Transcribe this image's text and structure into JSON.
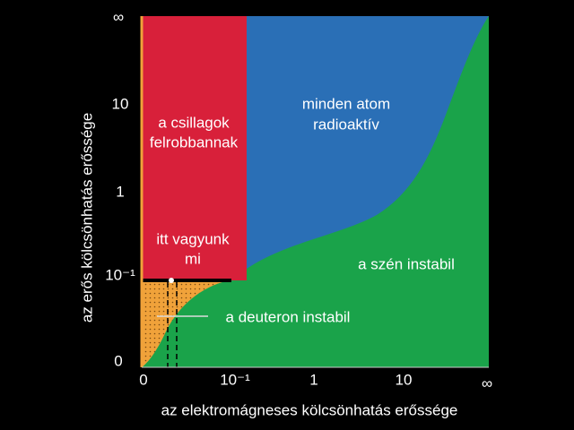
{
  "axes": {
    "x_label": "az elektromágneses kölcsönhatás erőssége",
    "y_label": "az erős kölcsönhatás erőssége",
    "x_ticks": [
      "0",
      "10⁻¹",
      "1",
      "10",
      "∞"
    ],
    "y_ticks": [
      "∞",
      "10",
      "1",
      "10⁻¹",
      "0"
    ]
  },
  "regions": [
    {
      "lines": [
        "a csillagok",
        "felrobbannak"
      ]
    },
    {
      "lines": [
        "minden atom",
        "radioaktív"
      ]
    },
    {
      "lines": [
        "itt vagyunk",
        "mi"
      ]
    },
    {
      "lines": [
        "a szén instabil"
      ]
    },
    {
      "lines": [
        "a deuteron instabil"
      ]
    }
  ]
}
